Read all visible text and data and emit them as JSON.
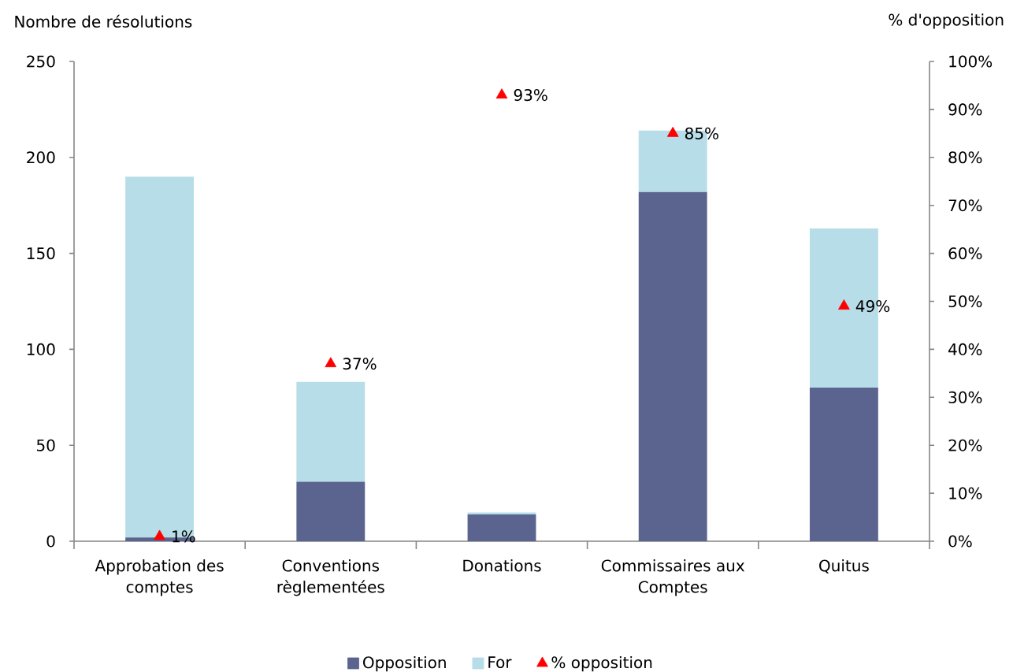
{
  "chart_data": {
    "type": "bar",
    "stacked": true,
    "ylabel": "Nombre de résolutions",
    "y2label": "% d'opposition",
    "categories": [
      "Approbation des comptes",
      "Conventions règlementées",
      "Donations",
      "Commissaires aux Comptes",
      "Quitus"
    ],
    "series": [
      {
        "name": "Opposition",
        "color": "#5b648f",
        "values": [
          2,
          31,
          14,
          182,
          80
        ]
      },
      {
        "name": "For",
        "color": "#b7dde8",
        "values": [
          188,
          52,
          1,
          32,
          83
        ]
      },
      {
        "name": "% opposition",
        "type": "scatter",
        "axis": "y2",
        "marker": "triangle",
        "color": "#ff0000",
        "values": [
          1,
          37,
          93,
          85,
          49
        ],
        "value_labels": [
          "1%",
          "37%",
          "93%",
          "85%",
          "49%"
        ]
      }
    ],
    "ylim": [
      0,
      250
    ],
    "yticks": [
      0,
      50,
      100,
      150,
      200,
      250
    ],
    "y2lim": [
      0,
      100
    ],
    "y2ticks": [
      {
        "value": 0,
        "label": "0%"
      },
      {
        "value": 10,
        "label": "10%"
      },
      {
        "value": 20,
        "label": "20%"
      },
      {
        "value": 30,
        "label": "30%"
      },
      {
        "value": 40,
        "label": "40%"
      },
      {
        "value": 50,
        "label": "50%"
      },
      {
        "value": 60,
        "label": "60%"
      },
      {
        "value": 70,
        "label": "70%"
      },
      {
        "value": 80,
        "label": "80%"
      },
      {
        "value": 90,
        "label": "90%"
      },
      {
        "value": 100,
        "label": "100%"
      }
    ],
    "legend": "bottom"
  }
}
